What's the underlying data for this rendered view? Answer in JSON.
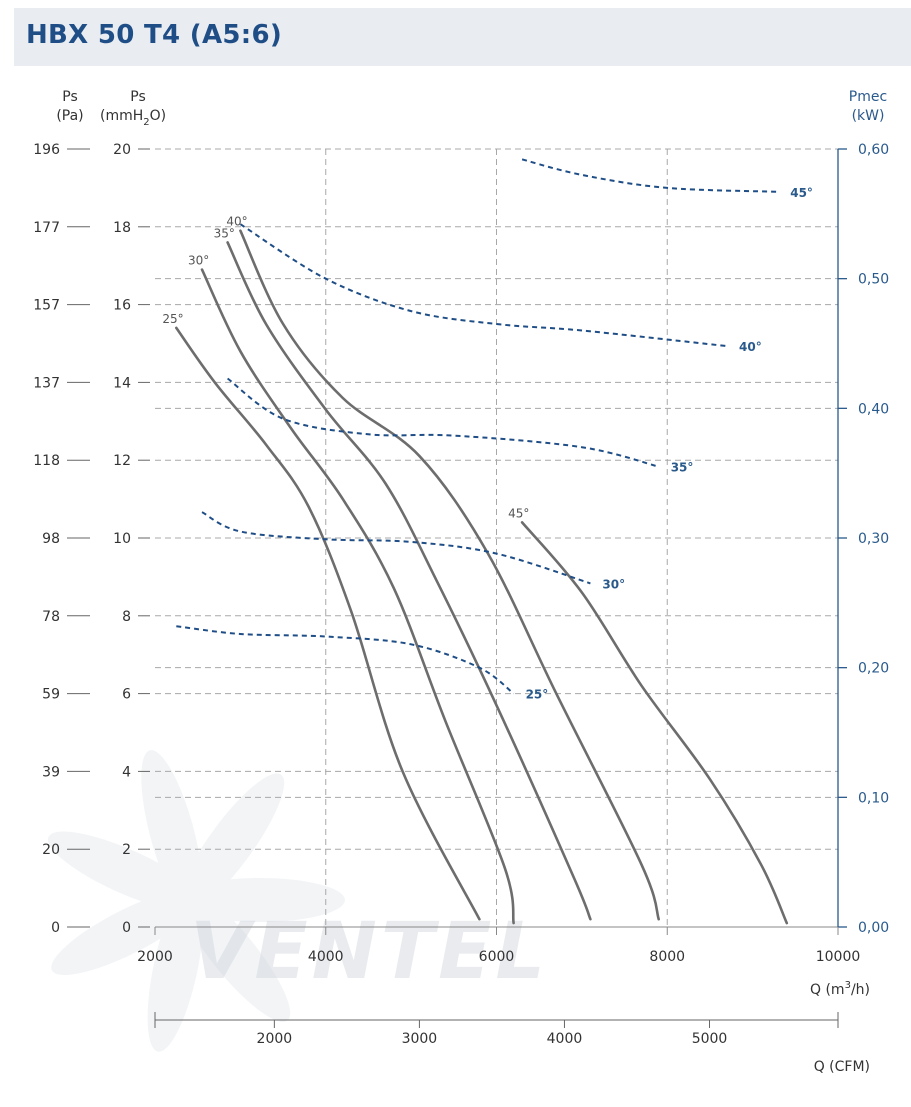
{
  "title": "HBX 50 T4 (A5:6)",
  "watermark": "VENTEL",
  "colors": {
    "title": "#1f4e87",
    "ps_curve": "#6d6d6d",
    "power_curve": "#1f4e87",
    "grid": "#a8a8a8",
    "right_axis": "#2a5a8c"
  },
  "chart_data": {
    "type": "line",
    "x_unit": "Q (m³/h)",
    "x_range": [
      2000,
      10000
    ],
    "x_ticks": [
      "2000",
      "4000",
      "6000",
      "8000",
      "10000"
    ],
    "left_axis_pa": {
      "label_top": "Ps",
      "label_bottom": "(Pa)",
      "ticks": [
        "0",
        "20",
        "39",
        "59",
        "78",
        "98",
        "118",
        "137",
        "157",
        "177",
        "196"
      ]
    },
    "left_axis_mmh2o": {
      "label_top": "Ps",
      "label_bottom": "(mmH",
      "label_sub": "2",
      "label_end": "O)",
      "range": [
        0,
        20
      ],
      "ticks": [
        "0",
        "2",
        "4",
        "6",
        "8",
        "10",
        "12",
        "14",
        "16",
        "18",
        "20"
      ]
    },
    "right_axis": {
      "label_top": "Pmec",
      "label_bottom": "(kW)",
      "range": [
        0,
        0.6
      ],
      "ticks": [
        "0,00",
        "0,10",
        "0,20",
        "0,30",
        "0,40",
        "0,50",
        "0,60"
      ]
    },
    "cfm_axis": {
      "label": "Q (CFM)",
      "ticks": [
        "2000",
        "3000",
        "4000",
        "5000"
      ],
      "values": [
        2000,
        3000,
        4000,
        5000
      ]
    },
    "ps_series": [
      {
        "name": "25°",
        "points": [
          [
            2250,
            15.4
          ],
          [
            2700,
            14.0
          ],
          [
            3300,
            12.4
          ],
          [
            3800,
            10.8
          ],
          [
            4300,
            8.1
          ],
          [
            4900,
            4.0
          ],
          [
            5800,
            0.2
          ]
        ]
      },
      {
        "name": "30°",
        "points": [
          [
            2550,
            16.9
          ],
          [
            3000,
            14.8
          ],
          [
            3600,
            12.8
          ],
          [
            4200,
            11.0
          ],
          [
            4800,
            8.7
          ],
          [
            5400,
            5.3
          ],
          [
            6100,
            1.5
          ],
          [
            6200,
            0.1
          ]
        ]
      },
      {
        "name": "35°",
        "points": [
          [
            2850,
            17.6
          ],
          [
            3300,
            15.5
          ],
          [
            4000,
            13.3
          ],
          [
            4700,
            11.4
          ],
          [
            5300,
            8.9
          ],
          [
            6000,
            5.7
          ],
          [
            6900,
            1.3
          ],
          [
            7100,
            0.2
          ]
        ]
      },
      {
        "name": "40°",
        "points": [
          [
            3000,
            17.9
          ],
          [
            3500,
            15.5
          ],
          [
            4200,
            13.6
          ],
          [
            5100,
            12.1
          ],
          [
            5900,
            9.6
          ],
          [
            6700,
            6.0
          ],
          [
            7700,
            1.6
          ],
          [
            7900,
            0.2
          ]
        ]
      },
      {
        "name": "45°",
        "points": [
          [
            6300,
            10.4
          ],
          [
            7000,
            8.6
          ],
          [
            7700,
            6.2
          ],
          [
            8500,
            3.8
          ],
          [
            9100,
            1.6
          ],
          [
            9400,
            0.1
          ]
        ]
      }
    ],
    "power_series": [
      {
        "name": "25°",
        "points": [
          [
            2250,
            0.232
          ],
          [
            3000,
            0.226
          ],
          [
            4000,
            0.224
          ],
          [
            5000,
            0.218
          ],
          [
            5800,
            0.2
          ],
          [
            6200,
            0.18
          ]
        ]
      },
      {
        "name": "30°",
        "points": [
          [
            2550,
            0.32
          ],
          [
            3000,
            0.305
          ],
          [
            4000,
            0.299
          ],
          [
            5000,
            0.297
          ],
          [
            6000,
            0.288
          ],
          [
            7100,
            0.265
          ]
        ]
      },
      {
        "name": "35°",
        "points": [
          [
            2850,
            0.423
          ],
          [
            3500,
            0.392
          ],
          [
            4500,
            0.38
          ],
          [
            5500,
            0.379
          ],
          [
            7000,
            0.37
          ],
          [
            7900,
            0.355
          ]
        ]
      },
      {
        "name": "40°",
        "points": [
          [
            3000,
            0.542
          ],
          [
            4000,
            0.5
          ],
          [
            5000,
            0.475
          ],
          [
            6000,
            0.465
          ],
          [
            7000,
            0.46
          ],
          [
            8700,
            0.448
          ]
        ]
      },
      {
        "name": "45°",
        "points": [
          [
            6300,
            0.592
          ],
          [
            7000,
            0.58
          ],
          [
            8000,
            0.57
          ],
          [
            9300,
            0.567
          ]
        ]
      }
    ]
  }
}
